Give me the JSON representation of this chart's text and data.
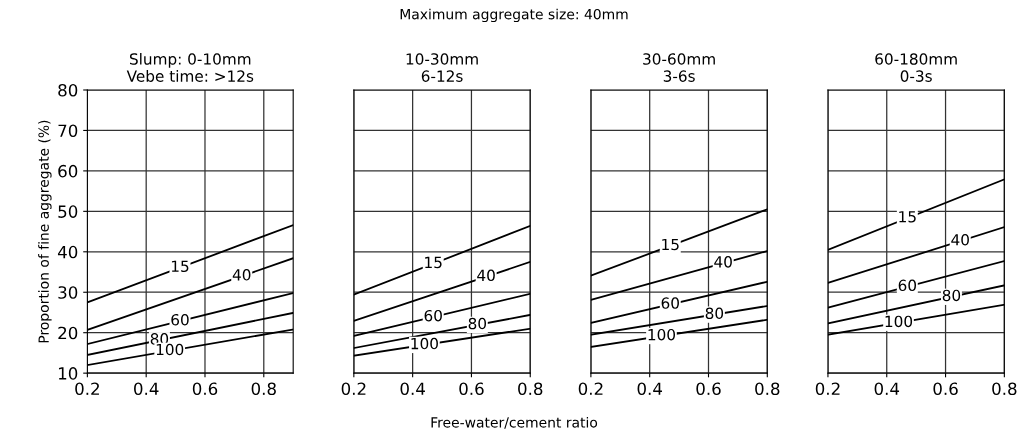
{
  "chart_data": [
    {
      "type": "line",
      "title": "Slump: 0-10mm\nVebe time: >12s",
      "ylabel": "Proportion of fine aggregate (%)",
      "annotations": [
        "Maximum aggregate size: 40mm",
        "Free-water/cement ratio"
      ],
      "x": [
        0.2,
        0.9
      ],
      "xlim": [
        0.2,
        0.9
      ],
      "xticks": [
        {
          "value": 0.2,
          "label": "0.2"
        },
        {
          "value": 0.4,
          "label": "0.4"
        },
        {
          "value": 0.6,
          "label": "0.6"
        },
        {
          "value": 0.8,
          "label": "0.8"
        }
      ],
      "ylim": [
        10,
        80
      ],
      "yticks": [
        10,
        20,
        30,
        40,
        50,
        60,
        70,
        80
      ],
      "grid": true,
      "series": [
        {
          "name": "15",
          "color": "#000000",
          "values": [
            27.5,
            46.6
          ]
        },
        {
          "name": "40",
          "color": "#000000",
          "values": [
            20.7,
            38.4
          ]
        },
        {
          "name": "60",
          "color": "#000000",
          "values": [
            17.2,
            29.8
          ]
        },
        {
          "name": "80",
          "color": "#000000",
          "values": [
            14.5,
            24.9
          ]
        },
        {
          "name": "100",
          "color": "#000000",
          "values": [
            12,
            20.8
          ]
        }
      ]
    },
    {
      "type": "line",
      "title": "10-30mm\n6-12s",
      "x": [
        0.2,
        0.8
      ],
      "xlim": [
        0.2,
        0.8
      ],
      "xticks": [
        {
          "value": 0.2,
          "label": "0.2"
        },
        {
          "value": 0.4,
          "label": "0.4"
        },
        {
          "value": 0.6,
          "label": "0.6"
        },
        {
          "value": 0.8,
          "label": "0.8"
        }
      ],
      "ylim": [
        10,
        80
      ],
      "yticks": [
        {
          "value": 10,
          "label": null
        },
        {
          "value": 20,
          "label": null
        },
        {
          "value": 30,
          "label": null
        },
        {
          "value": 40,
          "label": null
        },
        {
          "value": 50,
          "label": null
        },
        {
          "value": 60,
          "label": null
        },
        {
          "value": 70,
          "label": null
        },
        {
          "value": 80,
          "label": null
        }
      ],
      "tick_labels": "x",
      "grid": true,
      "series": [
        {
          "name": "15",
          "color": "#000000",
          "values": [
            29.4,
            46.4
          ]
        },
        {
          "name": "40",
          "color": "#000000",
          "values": [
            22.9,
            37.5
          ]
        },
        {
          "name": "60",
          "color": "#000000",
          "values": [
            19.2,
            29.6
          ]
        },
        {
          "name": "80",
          "color": "#000000",
          "values": [
            16.2,
            24.4
          ]
        },
        {
          "name": "100",
          "color": "#000000",
          "values": [
            14.3,
            21
          ]
        }
      ]
    },
    {
      "type": "line",
      "title": "30-60mm\n3-6s",
      "x": [
        0.2,
        0.8
      ],
      "xlim": [
        0.2,
        0.8
      ],
      "xticks": [
        {
          "value": 0.2,
          "label": "0.2"
        },
        {
          "value": 0.4,
          "label": "0.4"
        },
        {
          "value": 0.6,
          "label": "0.6"
        },
        {
          "value": 0.8,
          "label": "0.8"
        }
      ],
      "ylim": [
        10,
        80
      ],
      "yticks": [
        {
          "value": 10,
          "label": null
        },
        {
          "value": 20,
          "label": null
        },
        {
          "value": 30,
          "label": null
        },
        {
          "value": 40,
          "label": null
        },
        {
          "value": 50,
          "label": null
        },
        {
          "value": 60,
          "label": null
        },
        {
          "value": 70,
          "label": null
        },
        {
          "value": 80,
          "label": null
        }
      ],
      "tick_labels": "x",
      "grid": true,
      "series": [
        {
          "name": "15",
          "color": "#000000",
          "values": [
            34.1,
            50.5
          ]
        },
        {
          "name": "40",
          "color": "#000000",
          "values": [
            28.1,
            40.2
          ]
        },
        {
          "name": "60",
          "color": "#000000",
          "values": [
            22.4,
            32.6
          ]
        },
        {
          "name": "80",
          "color": "#000000",
          "values": [
            19.5,
            26.6
          ]
        },
        {
          "name": "100",
          "color": "#000000",
          "values": [
            16.5,
            23.2
          ]
        }
      ]
    },
    {
      "type": "line",
      "title": "60-180mm\n0-3s",
      "x": [
        0.2,
        0.8
      ],
      "xlim": [
        0.2,
        0.8
      ],
      "xticks": [
        {
          "value": 0.2,
          "label": "0.2"
        },
        {
          "value": 0.4,
          "label": "0.4"
        },
        {
          "value": 0.6,
          "label": "0.6"
        },
        {
          "value": 0.8,
          "label": "0.8"
        }
      ],
      "ylim": [
        10,
        80
      ],
      "yticks": [
        {
          "value": 10,
          "label": null
        },
        {
          "value": 20,
          "label": null
        },
        {
          "value": 30,
          "label": null
        },
        {
          "value": 40,
          "label": null
        },
        {
          "value": 50,
          "label": null
        },
        {
          "value": 60,
          "label": null
        },
        {
          "value": 70,
          "label": null
        },
        {
          "value": 80,
          "label": null
        }
      ],
      "tick_labels": "x",
      "grid": true,
      "series": [
        {
          "name": "15",
          "color": "#000000",
          "values": [
            40.5,
            57.9
          ]
        },
        {
          "name": "40",
          "color": "#000000",
          "values": [
            32.3,
            46.1
          ]
        },
        {
          "name": "60",
          "color": "#000000",
          "values": [
            26.2,
            37.7
          ]
        },
        {
          "name": "80",
          "color": "#000000",
          "values": [
            22.3,
            31.7
          ]
        },
        {
          "name": "100",
          "color": "#000000",
          "values": [
            19.5,
            26.9
          ]
        }
      ]
    }
  ]
}
